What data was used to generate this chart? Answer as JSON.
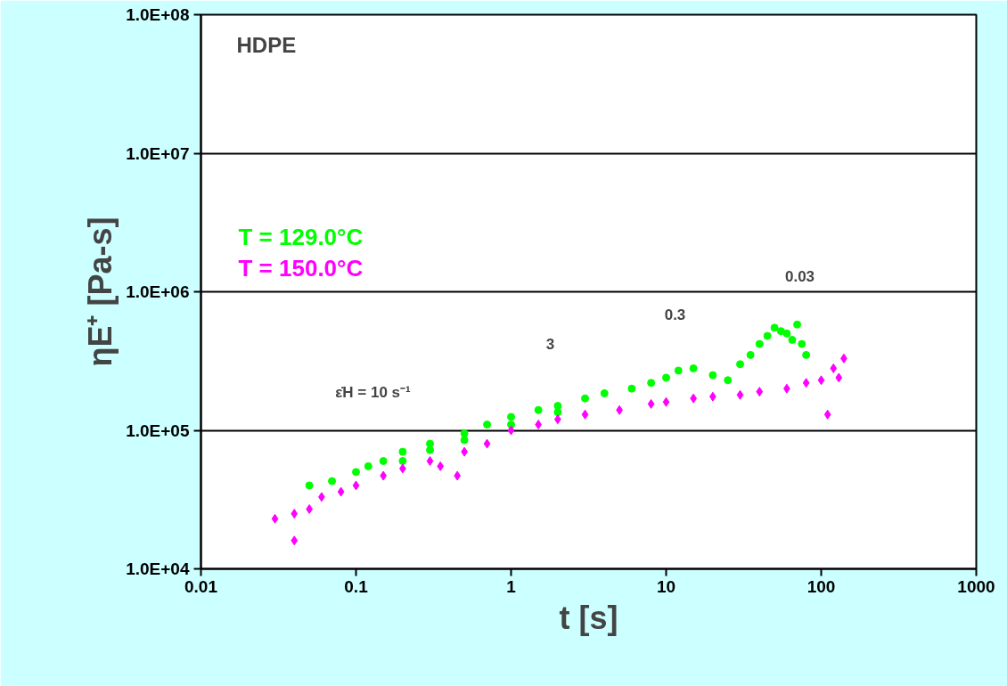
{
  "chart_data": {
    "type": "scatter",
    "title": "HDPE",
    "xlabel": "t [s]",
    "ylabel": "ηE⁺ [Pa-s]",
    "log": "xy",
    "grid": "y",
    "xlim": [
      0.01,
      1000
    ],
    "xticks": [
      0.01,
      0.1,
      1,
      10,
      100,
      1000
    ],
    "ylim": [
      10000,
      100000000
    ],
    "yticks": [
      {
        "value": 10000,
        "label": "1.0E+04"
      },
      {
        "value": 100000,
        "label": "1.0E+05"
      },
      {
        "value": 1000000,
        "label": "1.0E+06"
      },
      {
        "value": 10000000,
        "label": "1.0E+07"
      },
      {
        "value": 100000000,
        "label": "1.0E+08"
      }
    ],
    "series": [
      {
        "name": "T = 129.0°C",
        "color": "#00ff00",
        "marker": "circle",
        "x": [
          0.05,
          0.07,
          0.1,
          0.12,
          0.15,
          0.2,
          0.2,
          0.3,
          0.3,
          0.5,
          0.5,
          0.7,
          1,
          1,
          1.5,
          2,
          2,
          3,
          4,
          6,
          8,
          10,
          12,
          15,
          20,
          25,
          30,
          35,
          40,
          45,
          50,
          55,
          60,
          65,
          70,
          75,
          80
        ],
        "values": [
          40000,
          43000,
          50000,
          55000,
          60000,
          70000,
          60000,
          80000,
          72000,
          95000,
          85000,
          110000,
          125000,
          110000,
          140000,
          150000,
          135000,
          170000,
          185000,
          200000,
          220000,
          240000,
          270000,
          280000,
          250000,
          230000,
          300000,
          350000,
          420000,
          480000,
          550000,
          520000,
          500000,
          450000,
          580000,
          420000,
          350000
        ]
      },
      {
        "name": "T = 150.0°C",
        "color": "#ff00ff",
        "marker": "diamond",
        "x": [
          0.03,
          0.04,
          0.04,
          0.05,
          0.06,
          0.08,
          0.1,
          0.15,
          0.2,
          0.3,
          0.35,
          0.45,
          0.5,
          0.7,
          1,
          1.5,
          2,
          3,
          5,
          8,
          10,
          15,
          20,
          30,
          40,
          60,
          80,
          100,
          110,
          120,
          130,
          140
        ],
        "values": [
          23000,
          16000,
          25000,
          27000,
          33000,
          36000,
          40000,
          47000,
          53000,
          60000,
          55000,
          47000,
          70000,
          80000,
          100000,
          110000,
          120000,
          130000,
          140000,
          155000,
          160000,
          170000,
          175000,
          180000,
          190000,
          200000,
          220000,
          230000,
          130000,
          280000,
          240000,
          330000
        ]
      }
    ],
    "annotations": [
      "ε̇H = 10 s⁻¹",
      "3",
      "0.3",
      "0.03"
    ]
  }
}
